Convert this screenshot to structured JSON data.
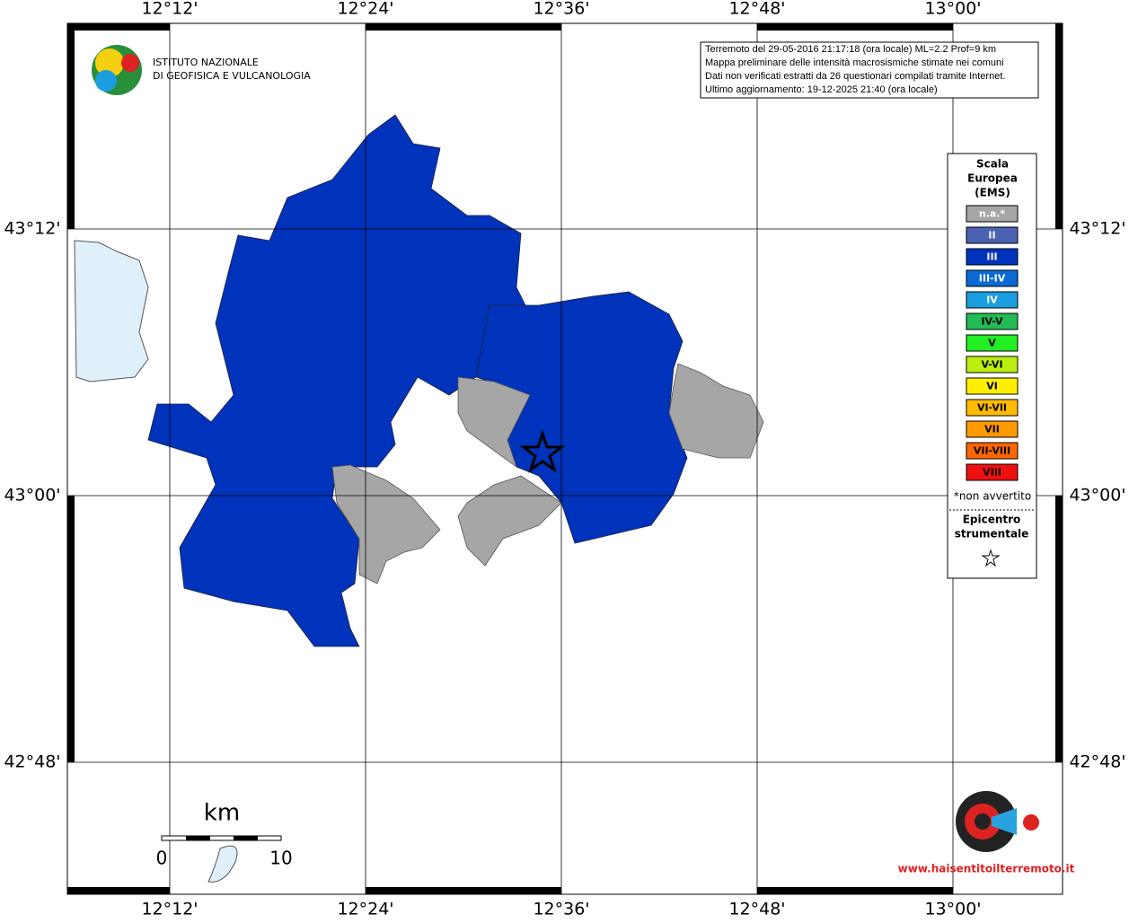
{
  "logo": {
    "line1": "ISTITUTO NAZIONALE",
    "line2": "DI GEOFISICA E VULCANOLOGIA"
  },
  "info": [
    "Terremoto del 29-05-2016 21:17:18 (ora locale) ML=2.2 Prof=9 km",
    "Mappa preliminare delle intensità macrosismiche stimate nei comuni",
    "Dati non verificati estratti da 26 questionari compilati tramite Internet.",
    "Ultimo aggiornamento: 19-12-2025 21:40 (ora locale)"
  ],
  "map": {
    "lon_ticks": [
      "12°12'",
      "12°24'",
      "12°36'",
      "12°48'",
      "13°00'"
    ],
    "lat_ticks": [
      "43°12'",
      "43°00'",
      "42°48'"
    ]
  },
  "legend": {
    "title": [
      "Scala",
      "Europea",
      "(EMS)"
    ],
    "items": [
      {
        "label": "n.a.*",
        "color": "#a6a6a6",
        "text_color": "#ffffff"
      },
      {
        "label": "II",
        "color": "#4a62b0",
        "text_color": "#ffffff"
      },
      {
        "label": "III",
        "color": "#0033bb",
        "text_color": "#ffffff"
      },
      {
        "label": "III-IV",
        "color": "#0a6ad6",
        "text_color": "#ffffff"
      },
      {
        "label": "IV",
        "color": "#1a9ee0",
        "text_color": "#ffffff"
      },
      {
        "label": "IV-V",
        "color": "#22bb55",
        "text_color": "#000000"
      },
      {
        "label": "V",
        "color": "#22ee22",
        "text_color": "#000000"
      },
      {
        "label": "V-VI",
        "color": "#bbee11",
        "text_color": "#000000"
      },
      {
        "label": "VI",
        "color": "#ffee00",
        "text_color": "#000000"
      },
      {
        "label": "VI-VII",
        "color": "#ffbb00",
        "text_color": "#000000"
      },
      {
        "label": "VII",
        "color": "#ff9900",
        "text_color": "#000000"
      },
      {
        "label": "VII-VIII",
        "color": "#ff6600",
        "text_color": "#000000"
      },
      {
        "label": "VIII",
        "color": "#ee1111",
        "text_color": "#000000"
      }
    ],
    "note": "*non avvertito",
    "epicentre": [
      "Epicentro",
      "strumentale"
    ]
  },
  "scale_bar": {
    "unit": "km",
    "start": "0",
    "end": "10"
  },
  "badge": "www.haisentitoilterremoto.it"
}
